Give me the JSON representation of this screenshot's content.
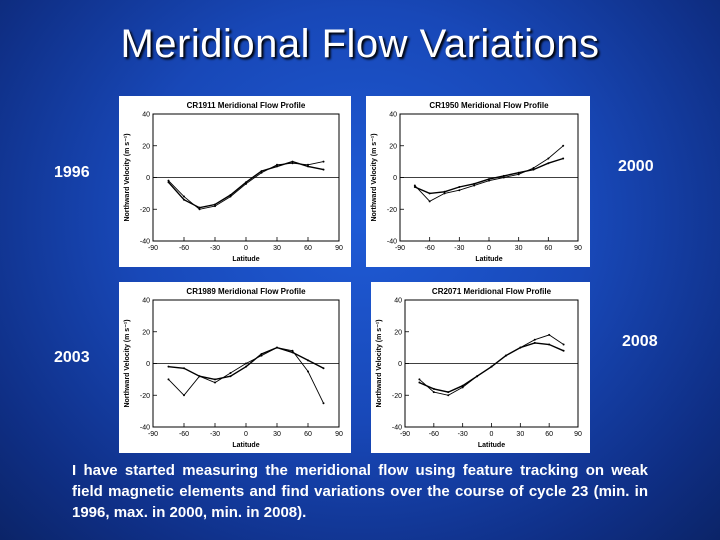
{
  "slide": {
    "title": "Meridional Flow Variations",
    "caption": "I have started measuring the meridional flow using feature tracking on weak field magnetic elements and find variations over the course of cycle 23 (min. in 1996, max. in 2000, min. in 2008).",
    "year_labels": [
      "1996",
      "2000",
      "2003",
      "2008"
    ]
  },
  "chart_data": [
    {
      "type": "line",
      "title": "CR1911 Meridional Flow Profile",
      "xlabel": "Latitude",
      "ylabel": "Northward Velocity (m s⁻¹)",
      "xlim": [
        -90,
        90
      ],
      "ylim": [
        -40,
        40
      ],
      "xticks": [
        -90,
        -60,
        -30,
        0,
        30,
        60,
        90
      ],
      "yticks": [
        -40,
        -20,
        0,
        20,
        40
      ],
      "x": [
        -75,
        -60,
        -45,
        -30,
        -15,
        0,
        15,
        30,
        45,
        60,
        75
      ],
      "series": [
        {
          "values": [
            -2,
            -12,
            -20,
            -18,
            -12,
            -4,
            3,
            8,
            9,
            8,
            10
          ]
        },
        {
          "values": [
            -3,
            -14,
            -19,
            -17,
            -11,
            -3,
            4,
            7,
            10,
            7,
            5
          ]
        }
      ]
    },
    {
      "type": "line",
      "title": "CR1950 Meridional Flow Profile",
      "xlabel": "Latitude",
      "ylabel": "Northward Velocity (m s⁻¹)",
      "xlim": [
        -90,
        90
      ],
      "ylim": [
        -40,
        40
      ],
      "xticks": [
        -90,
        -60,
        -30,
        0,
        30,
        60,
        90
      ],
      "yticks": [
        -40,
        -20,
        0,
        20,
        40
      ],
      "x": [
        -75,
        -60,
        -45,
        -30,
        -15,
        0,
        15,
        30,
        45,
        60,
        75
      ],
      "series": [
        {
          "values": [
            -5,
            -15,
            -10,
            -8,
            -5,
            -2,
            0,
            2,
            6,
            12,
            20
          ]
        },
        {
          "values": [
            -6,
            -10,
            -9,
            -6,
            -4,
            -1,
            1,
            3,
            5,
            9,
            12
          ]
        }
      ]
    },
    {
      "type": "line",
      "title": "CR1989 Meridional Flow Profile",
      "xlabel": "Latitude",
      "ylabel": "Northward Velocity (m s⁻¹)",
      "xlim": [
        -90,
        90
      ],
      "ylim": [
        -40,
        40
      ],
      "xticks": [
        -90,
        -60,
        -30,
        0,
        30,
        60,
        90
      ],
      "yticks": [
        -40,
        -20,
        0,
        20,
        40
      ],
      "x": [
        -75,
        -60,
        -45,
        -30,
        -15,
        0,
        15,
        30,
        45,
        60,
        75
      ],
      "series": [
        {
          "values": [
            -10,
            -20,
            -8,
            -12,
            -6,
            0,
            5,
            10,
            8,
            -5,
            -25
          ]
        },
        {
          "values": [
            -2,
            -3,
            -8,
            -10,
            -8,
            -2,
            6,
            10,
            7,
            2,
            -3
          ]
        }
      ]
    },
    {
      "type": "line",
      "title": "CR2071 Meridional Flow Profile",
      "xlabel": "Latitude",
      "ylabel": "Northward Velocity (m s⁻¹)",
      "xlim": [
        -90,
        90
      ],
      "ylim": [
        -40,
        40
      ],
      "xticks": [
        -90,
        -60,
        -30,
        0,
        30,
        60,
        90
      ],
      "yticks": [
        -40,
        -20,
        0,
        20,
        40
      ],
      "x": [
        -75,
        -60,
        -45,
        -30,
        -15,
        0,
        15,
        30,
        45,
        60,
        75
      ],
      "series": [
        {
          "values": [
            -10,
            -18,
            -20,
            -15,
            -8,
            -2,
            5,
            10,
            15,
            18,
            12
          ]
        },
        {
          "values": [
            -12,
            -16,
            -18,
            -14,
            -8,
            -2,
            5,
            10,
            13,
            12,
            8
          ]
        }
      ]
    }
  ]
}
